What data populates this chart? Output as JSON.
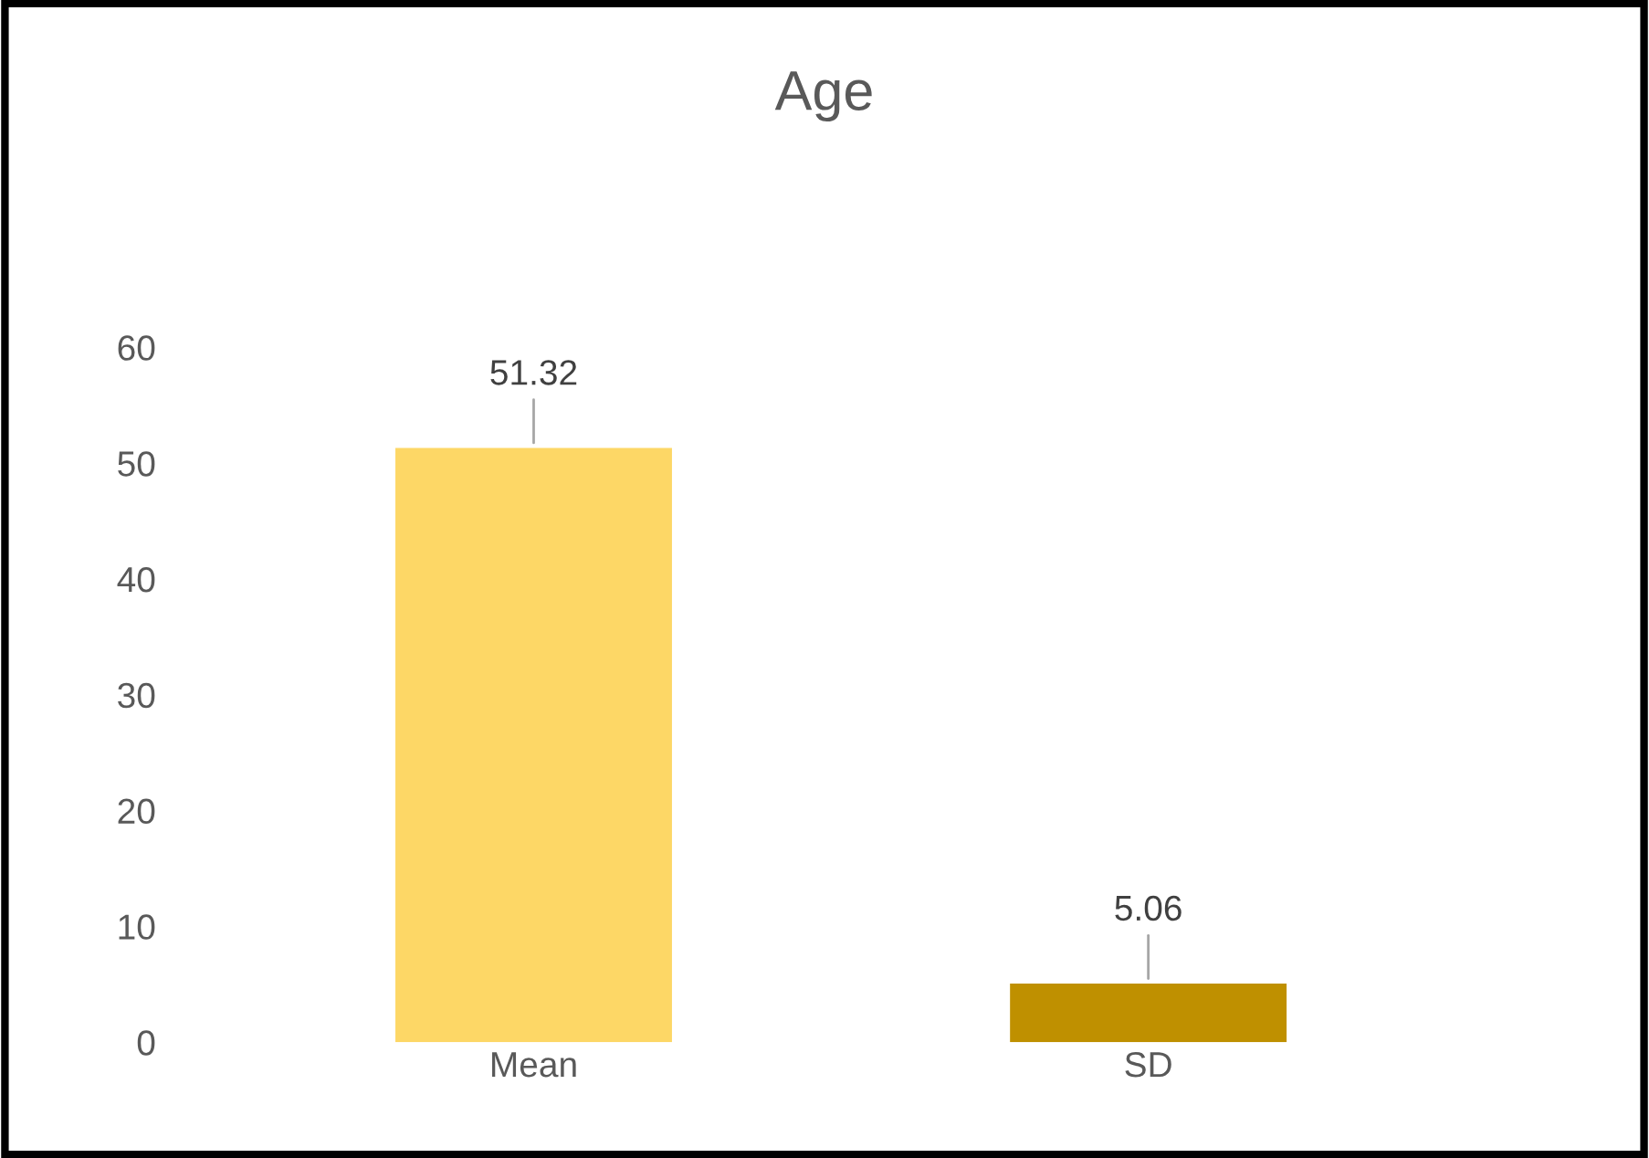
{
  "chart_data": {
    "type": "bar",
    "title": "Age",
    "categories": [
      "Mean",
      "SD"
    ],
    "values": [
      51.32,
      5.06
    ],
    "colors": [
      "#fdd766",
      "#bf9000"
    ],
    "ylim": [
      0,
      60
    ],
    "yticks": [
      0,
      10,
      20,
      30,
      40,
      50,
      60
    ],
    "data_labels": true,
    "grid": false,
    "legend": false
  }
}
